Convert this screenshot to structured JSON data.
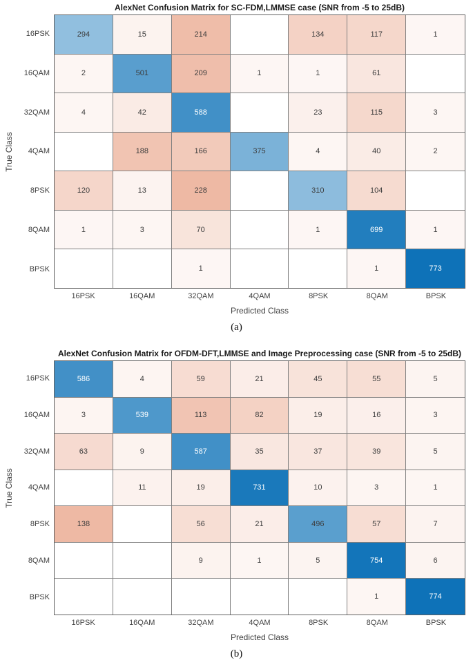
{
  "figure": {
    "background": "#ffffff"
  },
  "colors": {
    "diagonal_full": "#0e72b8",
    "off_diagonal_full": "#eeb9a4",
    "zero_cell": "#ffffff",
    "grid_line": "#7f7f7f",
    "cell_text_dark": "#3d3d3d",
    "cell_text_light": "#ffffff",
    "title_text": "#1a1a1a",
    "axis_text": "#3f3f3f"
  },
  "chart_data": [
    {
      "type": "heatmap",
      "subtype": "confusion-matrix",
      "title": "AlexNet Confusion Matrix for SC-FDM,LMMSE case (SNR from -5 to 25dB)",
      "xlabel": "Predicted Class",
      "ylabel": "True Class",
      "caption": "(a)",
      "col_labels": [
        "16PSK",
        "16QAM",
        "32QAM",
        "4QAM",
        "8PSK",
        "8QAM",
        "BPSK"
      ],
      "row_labels": [
        "16PSK",
        "16QAM",
        "32QAM",
        "4QAM",
        "8PSK",
        "8QAM",
        "BPSK"
      ],
      "matrix": [
        [
          294,
          15,
          214,
          null,
          134,
          117,
          1
        ],
        [
          2,
          501,
          209,
          1,
          1,
          61,
          null
        ],
        [
          4,
          42,
          588,
          null,
          23,
          115,
          3
        ],
        [
          null,
          188,
          166,
          375,
          4,
          40,
          2
        ],
        [
          120,
          13,
          228,
          null,
          310,
          104,
          null
        ],
        [
          1,
          3,
          70,
          null,
          1,
          699,
          1
        ],
        [
          null,
          null,
          1,
          null,
          null,
          1,
          773
        ]
      ]
    },
    {
      "type": "heatmap",
      "subtype": "confusion-matrix",
      "title": "AlexNet Confusion Matrix for OFDM-DFT,LMMSE and Image Preprocessing case (SNR from -5 to 25dB)",
      "xlabel": "Predicted Class",
      "ylabel": "True Class",
      "caption": "(b)",
      "col_labels": [
        "16PSK",
        "16QAM",
        "32QAM",
        "4QAM",
        "8PSK",
        "8QAM",
        "BPSK"
      ],
      "row_labels": [
        "16PSK",
        "16QAM",
        "32QAM",
        "4QAM",
        "8PSK",
        "8QAM",
        "BPSK"
      ],
      "matrix": [
        [
          586,
          4,
          59,
          21,
          45,
          55,
          5
        ],
        [
          3,
          539,
          113,
          82,
          19,
          16,
          3
        ],
        [
          63,
          9,
          587,
          35,
          37,
          39,
          5
        ],
        [
          null,
          11,
          19,
          731,
          10,
          3,
          1
        ],
        [
          138,
          null,
          56,
          21,
          496,
          57,
          7
        ],
        [
          null,
          null,
          9,
          1,
          5,
          754,
          6
        ],
        [
          null,
          null,
          null,
          null,
          null,
          1,
          774
        ]
      ]
    }
  ]
}
